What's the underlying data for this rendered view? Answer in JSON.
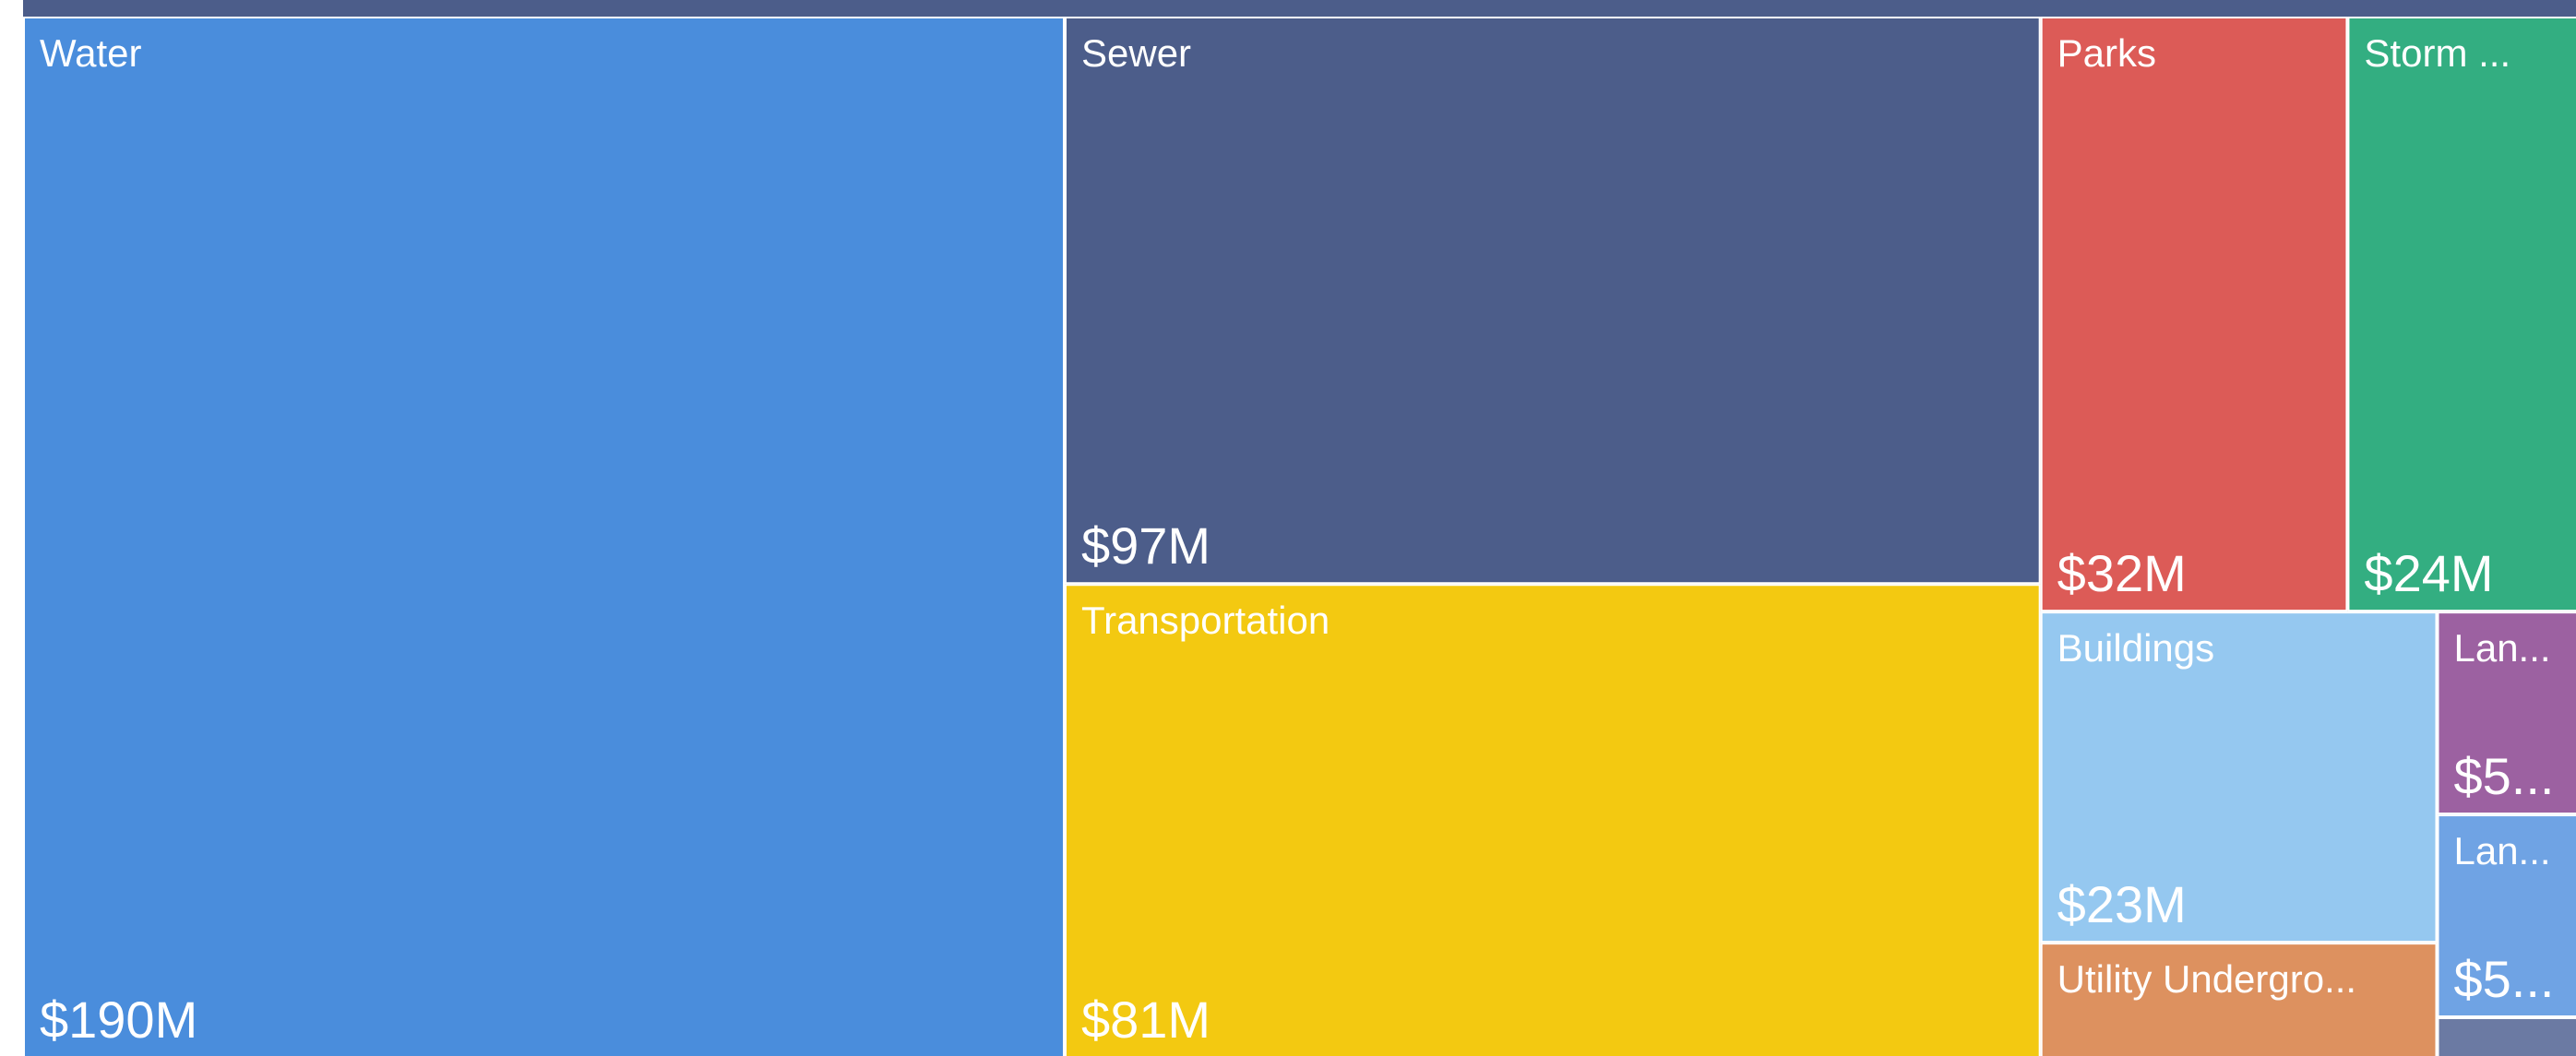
{
  "chart_data": {
    "type": "treemap",
    "categories": [
      "Water",
      "Sewer",
      "Transportation",
      "Parks",
      "Storm ...",
      "Buildings",
      "Lan...",
      "Lan...",
      "Utility Undergro...",
      null
    ],
    "values": [
      190,
      97,
      81,
      32,
      24,
      23,
      5,
      5,
      8,
      1
    ],
    "value_labels": [
      "$190M",
      "$97M",
      "$81M",
      "$32M",
      "$24M",
      "$23M",
      "$5...",
      "$5...",
      null,
      null
    ],
    "colors": [
      "#4a8ddc",
      "#4c5d8a",
      "#f3c911",
      "#dc5b57",
      "#33ae81",
      "#95c8f0",
      "#9c61a1",
      "#6fa3e4",
      "#dd915f",
      "#6b7aa3"
    ]
  }
}
